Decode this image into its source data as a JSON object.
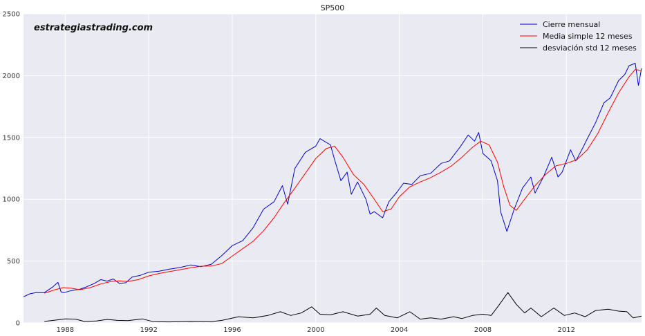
{
  "chart_data": {
    "type": "line",
    "title": "SP500",
    "watermark": "estrategiastrading.com",
    "xlabel": "",
    "ylabel": "",
    "xlim": [
      1986.0,
      2015.6
    ],
    "ylim": [
      0,
      2500
    ],
    "yticks": [
      0,
      500,
      1000,
      1500,
      2000,
      2500
    ],
    "xticks": [
      1988,
      1992,
      1996,
      2000,
      2004,
      2008,
      2012
    ],
    "grid": true,
    "legend_position": "top-right",
    "series": [
      {
        "name": "Cierre mensual",
        "color": "#0000cc",
        "points": [
          [
            1986.0,
            211
          ],
          [
            1986.3,
            235
          ],
          [
            1986.6,
            245
          ],
          [
            1987.0,
            245
          ],
          [
            1987.4,
            290
          ],
          [
            1987.65,
            328
          ],
          [
            1987.8,
            250
          ],
          [
            1987.95,
            245
          ],
          [
            1988.3,
            262
          ],
          [
            1988.7,
            272
          ],
          [
            1989.0,
            290
          ],
          [
            1989.4,
            320
          ],
          [
            1989.7,
            350
          ],
          [
            1990.0,
            338
          ],
          [
            1990.3,
            355
          ],
          [
            1990.6,
            318
          ],
          [
            1990.9,
            325
          ],
          [
            1991.2,
            370
          ],
          [
            1991.6,
            385
          ],
          [
            1992.0,
            410
          ],
          [
            1992.5,
            418
          ],
          [
            1993.0,
            435
          ],
          [
            1993.5,
            448
          ],
          [
            1994.0,
            468
          ],
          [
            1994.5,
            454
          ],
          [
            1995.0,
            475
          ],
          [
            1995.5,
            545
          ],
          [
            1996.0,
            625
          ],
          [
            1996.5,
            665
          ],
          [
            1997.0,
            770
          ],
          [
            1997.5,
            920
          ],
          [
            1998.0,
            980
          ],
          [
            1998.4,
            1110
          ],
          [
            1998.65,
            960
          ],
          [
            1999.0,
            1250
          ],
          [
            1999.5,
            1380
          ],
          [
            2000.0,
            1430
          ],
          [
            2000.2,
            1490
          ],
          [
            2000.7,
            1440
          ],
          [
            2000.9,
            1320
          ],
          [
            2001.2,
            1150
          ],
          [
            2001.5,
            1220
          ],
          [
            2001.7,
            1040
          ],
          [
            2002.0,
            1140
          ],
          [
            2002.4,
            1000
          ],
          [
            2002.6,
            880
          ],
          [
            2002.8,
            900
          ],
          [
            2003.2,
            850
          ],
          [
            2003.5,
            980
          ],
          [
            2003.9,
            1060
          ],
          [
            2004.2,
            1130
          ],
          [
            2004.6,
            1120
          ],
          [
            2005.0,
            1190
          ],
          [
            2005.5,
            1210
          ],
          [
            2006.0,
            1290
          ],
          [
            2006.4,
            1310
          ],
          [
            2006.9,
            1420
          ],
          [
            2007.3,
            1520
          ],
          [
            2007.6,
            1470
          ],
          [
            2007.8,
            1540
          ],
          [
            2008.0,
            1370
          ],
          [
            2008.4,
            1310
          ],
          [
            2008.7,
            1150
          ],
          [
            2008.85,
            900
          ],
          [
            2009.15,
            740
          ],
          [
            2009.5,
            920
          ],
          [
            2009.9,
            1090
          ],
          [
            2010.3,
            1180
          ],
          [
            2010.5,
            1050
          ],
          [
            2010.9,
            1180
          ],
          [
            2011.3,
            1340
          ],
          [
            2011.6,
            1180
          ],
          [
            2011.8,
            1220
          ],
          [
            2012.2,
            1400
          ],
          [
            2012.45,
            1310
          ],
          [
            2012.8,
            1420
          ],
          [
            2013.0,
            1490
          ],
          [
            2013.4,
            1620
          ],
          [
            2013.8,
            1780
          ],
          [
            2014.1,
            1820
          ],
          [
            2014.5,
            1960
          ],
          [
            2014.8,
            2010
          ],
          [
            2015.0,
            2080
          ],
          [
            2015.3,
            2100
          ],
          [
            2015.45,
            1920
          ],
          [
            2015.6,
            2060
          ]
        ]
      },
      {
        "name": "Media simple 12 meses",
        "color": "#ff0000",
        "points": [
          [
            1987.0,
            240
          ],
          [
            1987.5,
            268
          ],
          [
            1987.9,
            285
          ],
          [
            1988.3,
            280
          ],
          [
            1988.7,
            268
          ],
          [
            1989.2,
            285
          ],
          [
            1989.7,
            315
          ],
          [
            1990.2,
            335
          ],
          [
            1990.6,
            340
          ],
          [
            1991.0,
            335
          ],
          [
            1991.5,
            350
          ],
          [
            1992.0,
            380
          ],
          [
            1992.5,
            400
          ],
          [
            1993.0,
            415
          ],
          [
            1993.5,
            430
          ],
          [
            1994.0,
            445
          ],
          [
            1994.5,
            458
          ],
          [
            1995.0,
            460
          ],
          [
            1995.5,
            480
          ],
          [
            1996.0,
            540
          ],
          [
            1996.5,
            600
          ],
          [
            1997.0,
            660
          ],
          [
            1997.5,
            745
          ],
          [
            1998.0,
            850
          ],
          [
            1998.5,
            975
          ],
          [
            1999.0,
            1090
          ],
          [
            1999.5,
            1210
          ],
          [
            2000.0,
            1330
          ],
          [
            2000.5,
            1410
          ],
          [
            2000.9,
            1430
          ],
          [
            2001.3,
            1340
          ],
          [
            2001.8,
            1200
          ],
          [
            2002.3,
            1120
          ],
          [
            2002.8,
            1000
          ],
          [
            2003.2,
            900
          ],
          [
            2003.6,
            920
          ],
          [
            2004.0,
            1020
          ],
          [
            2004.5,
            1100
          ],
          [
            2005.0,
            1140
          ],
          [
            2005.5,
            1175
          ],
          [
            2006.0,
            1220
          ],
          [
            2006.5,
            1270
          ],
          [
            2007.0,
            1340
          ],
          [
            2007.5,
            1420
          ],
          [
            2007.9,
            1470
          ],
          [
            2008.3,
            1440
          ],
          [
            2008.7,
            1300
          ],
          [
            2009.0,
            1100
          ],
          [
            2009.3,
            950
          ],
          [
            2009.6,
            910
          ],
          [
            2010.0,
            1000
          ],
          [
            2010.5,
            1110
          ],
          [
            2011.0,
            1200
          ],
          [
            2011.5,
            1270
          ],
          [
            2012.0,
            1290
          ],
          [
            2012.5,
            1320
          ],
          [
            2013.0,
            1400
          ],
          [
            2013.5,
            1530
          ],
          [
            2014.0,
            1700
          ],
          [
            2014.5,
            1860
          ],
          [
            2015.0,
            1990
          ],
          [
            2015.3,
            2050
          ],
          [
            2015.6,
            2040
          ]
        ]
      },
      {
        "name": "desviación std 12 meses",
        "color": "#000000",
        "points": [
          [
            1987.0,
            12
          ],
          [
            1987.5,
            22
          ],
          [
            1988.0,
            32
          ],
          [
            1988.5,
            30
          ],
          [
            1988.9,
            12
          ],
          [
            1989.5,
            15
          ],
          [
            1990.0,
            28
          ],
          [
            1990.5,
            20
          ],
          [
            1991.0,
            18
          ],
          [
            1991.7,
            32
          ],
          [
            1992.2,
            10
          ],
          [
            1993.0,
            8
          ],
          [
            1994.0,
            12
          ],
          [
            1995.0,
            10
          ],
          [
            1995.5,
            20
          ],
          [
            1996.3,
            50
          ],
          [
            1997.0,
            40
          ],
          [
            1997.7,
            60
          ],
          [
            1998.3,
            90
          ],
          [
            1998.8,
            60
          ],
          [
            1999.3,
            80
          ],
          [
            1999.8,
            130
          ],
          [
            2000.2,
            70
          ],
          [
            2000.7,
            65
          ],
          [
            2001.3,
            90
          ],
          [
            2002.0,
            55
          ],
          [
            2002.6,
            70
          ],
          [
            2002.9,
            120
          ],
          [
            2003.3,
            60
          ],
          [
            2003.9,
            40
          ],
          [
            2004.5,
            90
          ],
          [
            2005.0,
            30
          ],
          [
            2005.5,
            40
          ],
          [
            2006.0,
            30
          ],
          [
            2006.6,
            50
          ],
          [
            2007.0,
            35
          ],
          [
            2007.5,
            60
          ],
          [
            2008.0,
            70
          ],
          [
            2008.4,
            60
          ],
          [
            2008.8,
            150
          ],
          [
            2009.2,
            245
          ],
          [
            2009.6,
            150
          ],
          [
            2010.0,
            80
          ],
          [
            2010.3,
            120
          ],
          [
            2010.8,
            50
          ],
          [
            2011.4,
            120
          ],
          [
            2011.9,
            60
          ],
          [
            2012.4,
            80
          ],
          [
            2012.9,
            50
          ],
          [
            2013.4,
            100
          ],
          [
            2014.0,
            110
          ],
          [
            2014.5,
            95
          ],
          [
            2014.9,
            90
          ],
          [
            2015.2,
            40
          ],
          [
            2015.6,
            55
          ]
        ]
      }
    ]
  }
}
